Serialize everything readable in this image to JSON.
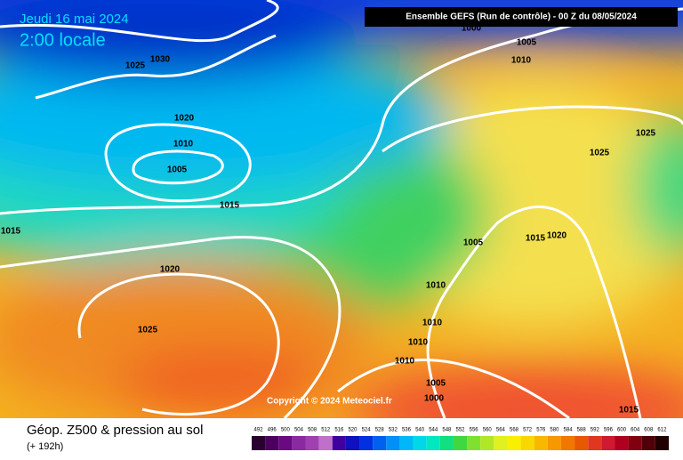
{
  "header": {
    "date": "Jeudi 16 mai 2024",
    "time": "2:00 locale",
    "run": "Ensemble GEFS  (Run de contrôle)  -  00 Z du 08/05/2024"
  },
  "copyright": "Copyright © 2024 Meteociel.fr",
  "isobars": [
    "1000",
    "1005",
    "1010",
    "1030",
    "1025",
    "1020",
    "1010",
    "1005",
    "1015",
    "1015",
    "1025",
    "1025",
    "1005",
    "1015",
    "1020",
    "1010",
    "1020",
    "1025",
    "1010",
    "1010",
    "1010",
    "1005",
    "1000",
    "1015"
  ],
  "footer": {
    "title": "Géop. Z500 & pression au sol",
    "subtitle": "(+ 192h)"
  },
  "scale": {
    "values": [
      492,
      496,
      500,
      504,
      508,
      512,
      516,
      520,
      524,
      528,
      532,
      536,
      540,
      544,
      548,
      552,
      556,
      560,
      564,
      568,
      572,
      576,
      580,
      584,
      588,
      592,
      596,
      600,
      604,
      608,
      612
    ],
    "colors": [
      "#2a0030",
      "#4b0060",
      "#6a0a80",
      "#8a2aa0",
      "#a040b0",
      "#c070c8",
      "#4000a0",
      "#1010c0",
      "#0030e0",
      "#0060f0",
      "#0090f8",
      "#00b8f8",
      "#00d8e8",
      "#00e8c0",
      "#10e080",
      "#40d840",
      "#80e030",
      "#b0e828",
      "#e0f020",
      "#f8f000",
      "#f8d800",
      "#f8b800",
      "#f89800",
      "#f07800",
      "#e85800",
      "#e03820",
      "#d01830",
      "#b00020",
      "#800010",
      "#500008",
      "#200000"
    ]
  }
}
